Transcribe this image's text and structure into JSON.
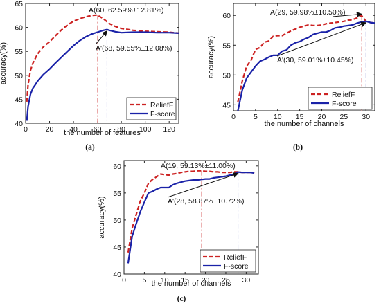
{
  "colors": {
    "relieff": "#cc2222",
    "fscore": "#1a22a8",
    "vline_a": "#e8a0a0",
    "vline_b": "#9aa0d8"
  },
  "chart_data": [
    {
      "type": "line",
      "caption": "(a)",
      "xlabel": "the number of features",
      "ylabel": "accuracy(%)",
      "xlim": [
        0,
        128
      ],
      "ylim": [
        40,
        65
      ],
      "xticks": [
        0,
        20,
        40,
        60,
        80,
        100,
        120
      ],
      "yticks": [
        40,
        45,
        50,
        55,
        60,
        65
      ],
      "legend_position": "bottom-right",
      "annotations": [
        {
          "text": "A(60, 62.59%±12.81%)",
          "x": 60,
          "y": 62.59,
          "series": 0
        },
        {
          "text": "A'(68, 59.55%±12.08%)",
          "x": 68,
          "y": 59.55,
          "series": 1
        }
      ],
      "series": [
        {
          "name": "ReliefF",
          "style": "dashed",
          "x": [
            1,
            2,
            4,
            6,
            8,
            10,
            15,
            20,
            25,
            30,
            35,
            40,
            45,
            50,
            55,
            60,
            65,
            70,
            75,
            80,
            90,
            100,
            110,
            120,
            128
          ],
          "y": [
            44.5,
            48,
            51,
            52.5,
            53.5,
            54.5,
            56,
            57,
            58.3,
            59.5,
            60.5,
            61.3,
            61.8,
            62.2,
            62.5,
            62.59,
            61.8,
            60.8,
            60.2,
            59.8,
            59.4,
            59.2,
            59.1,
            59.0,
            58.8
          ]
        },
        {
          "name": "F-score",
          "style": "solid",
          "x": [
            1,
            2,
            4,
            6,
            8,
            10,
            15,
            20,
            25,
            30,
            35,
            40,
            45,
            50,
            55,
            60,
            65,
            68,
            70,
            75,
            80,
            90,
            100,
            110,
            120,
            128
          ],
          "y": [
            40.5,
            43.5,
            46,
            47.3,
            48,
            48.8,
            50.2,
            51.3,
            52.6,
            53.8,
            55,
            56.2,
            57.2,
            58,
            58.6,
            59,
            59.4,
            59.55,
            59.4,
            59.1,
            58.9,
            59.0,
            59.0,
            58.9,
            58.9,
            58.8
          ]
        }
      ]
    },
    {
      "type": "line",
      "caption": "(b)",
      "xlabel": "the number of channels",
      "ylabel": "accuracy(%)",
      "xlim": [
        0,
        32
      ],
      "ylim": [
        44,
        62
      ],
      "xticks": [
        0,
        5,
        10,
        15,
        20,
        25,
        30
      ],
      "yticks": [
        45,
        50,
        55,
        60
      ],
      "legend_position": "bottom-right",
      "annotations": [
        {
          "text": "A(29, 59.98%±10.50%)",
          "x": 29,
          "y": 59.98,
          "series": 0
        },
        {
          "text": "A'(30, 59.01%±10.45%)",
          "x": 30,
          "y": 59.01,
          "series": 1
        }
      ],
      "series": [
        {
          "name": "ReliefF",
          "style": "dashed",
          "x": [
            1,
            2,
            3,
            4,
            5,
            6,
            7,
            8,
            9,
            10,
            11,
            12,
            13,
            14,
            15,
            16,
            17,
            18,
            19,
            20,
            21,
            22,
            23,
            24,
            25,
            26,
            27,
            28,
            29,
            30,
            31,
            32
          ],
          "y": [
            45.5,
            49,
            51.5,
            52.5,
            54.3,
            54.6,
            55.5,
            55.7,
            56.5,
            56.6,
            56.6,
            57,
            57.4,
            57.7,
            58,
            58.2,
            58.4,
            58.3,
            58.3,
            58.4,
            58.6,
            58.7,
            58.8,
            58.9,
            59,
            59.2,
            59.3,
            59.6,
            59.98,
            59.0,
            58.8,
            58.7
          ]
        },
        {
          "name": "F-score",
          "style": "solid",
          "x": [
            1,
            2,
            3,
            4,
            5,
            6,
            7,
            8,
            9,
            10,
            11,
            12,
            13,
            14,
            15,
            16,
            17,
            18,
            19,
            20,
            21,
            22,
            23,
            24,
            25,
            26,
            27,
            28,
            29,
            30,
            31,
            32
          ],
          "y": [
            44,
            47.5,
            49.5,
            50.5,
            51.5,
            52.3,
            52.6,
            53,
            53.3,
            53.3,
            54,
            54.2,
            55,
            55.4,
            55.6,
            56,
            56.3,
            56.8,
            57,
            57.2,
            57.2,
            57.5,
            57.9,
            58,
            58.2,
            58.3,
            58.4,
            58.7,
            58.9,
            59.01,
            58.8,
            58.7
          ]
        }
      ]
    },
    {
      "type": "line",
      "caption": "(c)",
      "xlabel": "the number of channels",
      "ylabel": "accuracy(%)",
      "xlim": [
        0,
        33
      ],
      "ylim": [
        40,
        61
      ],
      "xticks": [
        0,
        5,
        10,
        15,
        20,
        25,
        30
      ],
      "yticks": [
        40,
        45,
        50,
        55,
        60
      ],
      "legend_position": "bottom-right",
      "annotations": [
        {
          "text": "A(19, 59.13%±11.00%)",
          "x": 19,
          "y": 59.13,
          "series": 0
        },
        {
          "text": "A'(28, 58.87%±10.72%)",
          "x": 28,
          "y": 58.87,
          "series": 1
        }
      ],
      "series": [
        {
          "name": "ReliefF",
          "style": "dashed",
          "x": [
            1,
            2,
            3,
            4,
            5,
            6,
            7,
            8,
            9,
            10,
            11,
            12,
            13,
            14,
            15,
            16,
            17,
            18,
            19,
            20,
            21,
            22,
            23,
            24,
            25,
            26,
            27,
            28,
            29,
            30,
            31,
            32
          ],
          "y": [
            44,
            48.5,
            51,
            53.5,
            55,
            56.8,
            57.5,
            58,
            58.5,
            58.4,
            58.3,
            58.5,
            58.6,
            58.8,
            58.9,
            59,
            59,
            59.1,
            59.13,
            59,
            59,
            58.9,
            58.9,
            58.8,
            58.8,
            58.8,
            58.9,
            58.9,
            58.8,
            58.8,
            58.8,
            58.7
          ]
        },
        {
          "name": "F-score",
          "style": "solid",
          "x": [
            1,
            2,
            3,
            4,
            5,
            6,
            7,
            8,
            9,
            10,
            11,
            12,
            13,
            14,
            15,
            16,
            17,
            18,
            19,
            20,
            21,
            22,
            23,
            24,
            25,
            26,
            27,
            28,
            29,
            30,
            31,
            32
          ],
          "y": [
            42,
            47,
            49.3,
            51.5,
            53.3,
            55,
            55.3,
            55.7,
            56,
            56,
            56,
            56.5,
            56.8,
            57,
            57.2,
            57.3,
            57.4,
            57.4,
            57.5,
            57.6,
            57.6,
            57.8,
            57.9,
            58,
            58.1,
            58.3,
            58.5,
            58.87,
            58.8,
            58.8,
            58.8,
            58.7
          ]
        }
      ]
    }
  ]
}
